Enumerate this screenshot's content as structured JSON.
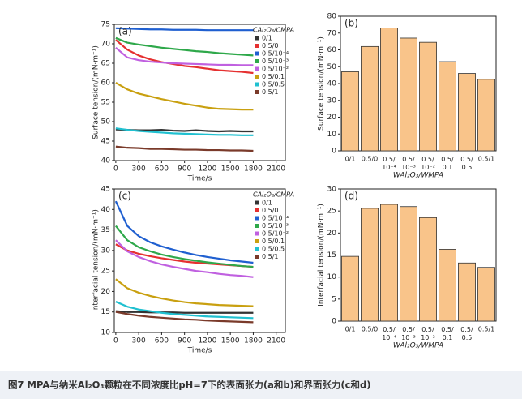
{
  "caption": "图7 MPA与纳米Al₂O₃颗粒在不同浓度比pH=7下的表面张力(a和b)和界面张力(c和d)",
  "chart_data": [
    {
      "type": "line",
      "panel_label": "(a)",
      "x_label": "Time/s",
      "y_label": "Surface tension/(mN·m⁻¹)",
      "legend_title": "CAl₂O₃/CMPA",
      "xlim": [
        -20,
        2220
      ],
      "xticks": [
        0,
        300,
        600,
        900,
        1200,
        1500,
        1800,
        2100
      ],
      "ylim": [
        40,
        75
      ],
      "yticks": [
        40,
        45,
        50,
        55,
        60,
        65,
        70,
        75
      ],
      "x": [
        0,
        150,
        300,
        450,
        600,
        750,
        900,
        1050,
        1200,
        1350,
        1500,
        1650,
        1800
      ],
      "series": [
        {
          "name": "0/1",
          "color": "#333333",
          "values": [
            48,
            47.9,
            47.8,
            47.8,
            47.9,
            47.7,
            47.6,
            47.8,
            47.6,
            47.5,
            47.6,
            47.5,
            47.5
          ]
        },
        {
          "name": "0.5/0",
          "color": "#e53030",
          "values": [
            71,
            68.5,
            67,
            66,
            65.3,
            64.8,
            64.3,
            64,
            63.6,
            63.2,
            63,
            62.8,
            62.5
          ]
        },
        {
          "name": "0.5/10⁻⁴",
          "color": "#1f5fd0",
          "values": [
            74,
            73.9,
            73.8,
            73.7,
            73.7,
            73.6,
            73.6,
            73.6,
            73.5,
            73.5,
            73.5,
            73.5,
            73.5
          ]
        },
        {
          "name": "0.5/10⁻³",
          "color": "#2ea84a",
          "values": [
            71.5,
            70.3,
            69.8,
            69.4,
            69,
            68.7,
            68.4,
            68.1,
            67.9,
            67.6,
            67.4,
            67.2,
            67
          ]
        },
        {
          "name": "0.5/10⁻²",
          "color": "#c060e0",
          "values": [
            69,
            66.5,
            65.8,
            65.4,
            65.2,
            65,
            64.9,
            64.8,
            64.7,
            64.6,
            64.6,
            64.5,
            64.5
          ]
        },
        {
          "name": "0.5/0.1",
          "color": "#c9a010",
          "values": [
            60,
            58.3,
            57.2,
            56.5,
            55.8,
            55.2,
            54.6,
            54.1,
            53.6,
            53.3,
            53.2,
            53.1,
            53.1
          ]
        },
        {
          "name": "0.5/0.5",
          "color": "#20c0d0",
          "values": [
            48.3,
            47.9,
            47.6,
            47.4,
            47.2,
            47,
            46.9,
            46.8,
            46.7,
            46.6,
            46.6,
            46.5,
            46.5
          ]
        },
        {
          "name": "0.5/1",
          "color": "#7a3a2a",
          "values": [
            43.6,
            43.3,
            43.2,
            43,
            43,
            42.9,
            42.8,
            42.8,
            42.7,
            42.7,
            42.6,
            42.6,
            42.5
          ]
        }
      ]
    },
    {
      "type": "bar",
      "panel_label": "(b)",
      "x_label": "WAl₂O₃/WMPA",
      "y_label": "Surface tension/(mN·m⁻¹)",
      "color": "#f9c48a",
      "ylim": [
        0,
        80
      ],
      "yticks": [
        0,
        10,
        20,
        30,
        40,
        50,
        60,
        70,
        80
      ],
      "categories": [
        "0/1",
        "0.5/0",
        "0.5/10⁻⁴",
        "0.5/10⁻³",
        "0.5/10⁻²",
        "0.5/0.1",
        "0.5/0.5",
        "0.5/1"
      ],
      "values": [
        47,
        62,
        73,
        67,
        64.5,
        53,
        46,
        42.5
      ]
    },
    {
      "type": "line",
      "panel_label": "(c)",
      "x_label": "Time/s",
      "y_label": "Interfacial tension/(mN·m⁻¹)",
      "legend_title": "CAl₂O₃/CMPA",
      "xlim": [
        -20,
        2220
      ],
      "xticks": [
        0,
        300,
        600,
        900,
        1200,
        1500,
        1800,
        2100
      ],
      "ylim": [
        10,
        45
      ],
      "yticks": [
        10,
        15,
        20,
        25,
        30,
        35,
        40,
        45
      ],
      "x": [
        0,
        150,
        300,
        450,
        600,
        750,
        900,
        1050,
        1200,
        1350,
        1500,
        1650,
        1800
      ],
      "series": [
        {
          "name": "0/1",
          "color": "#333333",
          "values": [
            15.2,
            15,
            15,
            14.9,
            14.9,
            14.9,
            14.8,
            14.8,
            14.8,
            14.8,
            14.8,
            14.8,
            14.8
          ]
        },
        {
          "name": "0.5/0",
          "color": "#e53030",
          "values": [
            31.5,
            30,
            29.2,
            28.6,
            28.1,
            27.7,
            27.3,
            27,
            26.8,
            26.6,
            26.4,
            26.2,
            26
          ]
        },
        {
          "name": "0.5/10⁻⁴",
          "color": "#1f5fd0",
          "values": [
            42,
            36,
            33.5,
            32,
            31,
            30.2,
            29.5,
            28.9,
            28.4,
            28,
            27.6,
            27.3,
            27
          ]
        },
        {
          "name": "0.5/10⁻³",
          "color": "#2ea84a",
          "values": [
            36,
            32.5,
            30.8,
            29.8,
            29,
            28.4,
            27.9,
            27.5,
            27.1,
            26.8,
            26.5,
            26.2,
            26
          ]
        },
        {
          "name": "0.5/10⁻²",
          "color": "#c060e0",
          "values": [
            32.5,
            29.8,
            28.4,
            27.4,
            26.6,
            26,
            25.5,
            25,
            24.7,
            24.3,
            24,
            23.8,
            23.5
          ]
        },
        {
          "name": "0.5/0.1",
          "color": "#c9a010",
          "values": [
            23,
            20.8,
            19.7,
            18.9,
            18.3,
            17.8,
            17.4,
            17.1,
            16.9,
            16.7,
            16.6,
            16.5,
            16.4
          ]
        },
        {
          "name": "0.5/0.5",
          "color": "#20c0d0",
          "values": [
            17.5,
            16.3,
            15.6,
            15.2,
            14.8,
            14.5,
            14.3,
            14.1,
            13.9,
            13.8,
            13.7,
            13.6,
            13.5
          ]
        },
        {
          "name": "0.5/1",
          "color": "#7a3a2a",
          "values": [
            15,
            14.5,
            14.1,
            13.8,
            13.6,
            13.4,
            13.2,
            13.1,
            12.9,
            12.8,
            12.7,
            12.6,
            12.5
          ]
        }
      ]
    },
    {
      "type": "bar",
      "panel_label": "(d)",
      "x_label": "WAl₂O₃/WMPA",
      "y_label": "Interfacial tension/(mN·m⁻¹)",
      "color": "#f9c48a",
      "ylim": [
        0,
        30
      ],
      "yticks": [
        0,
        5,
        10,
        15,
        20,
        25,
        30
      ],
      "categories": [
        "0/1",
        "0.5/0",
        "0.5/10⁻⁴",
        "0.5/10⁻³",
        "0.5/10⁻²",
        "0.5/0.1",
        "0.5/0.5",
        "0.5/1"
      ],
      "values": [
        14.7,
        25.6,
        26.5,
        26,
        23.5,
        16.3,
        13.2,
        12.2
      ]
    }
  ]
}
